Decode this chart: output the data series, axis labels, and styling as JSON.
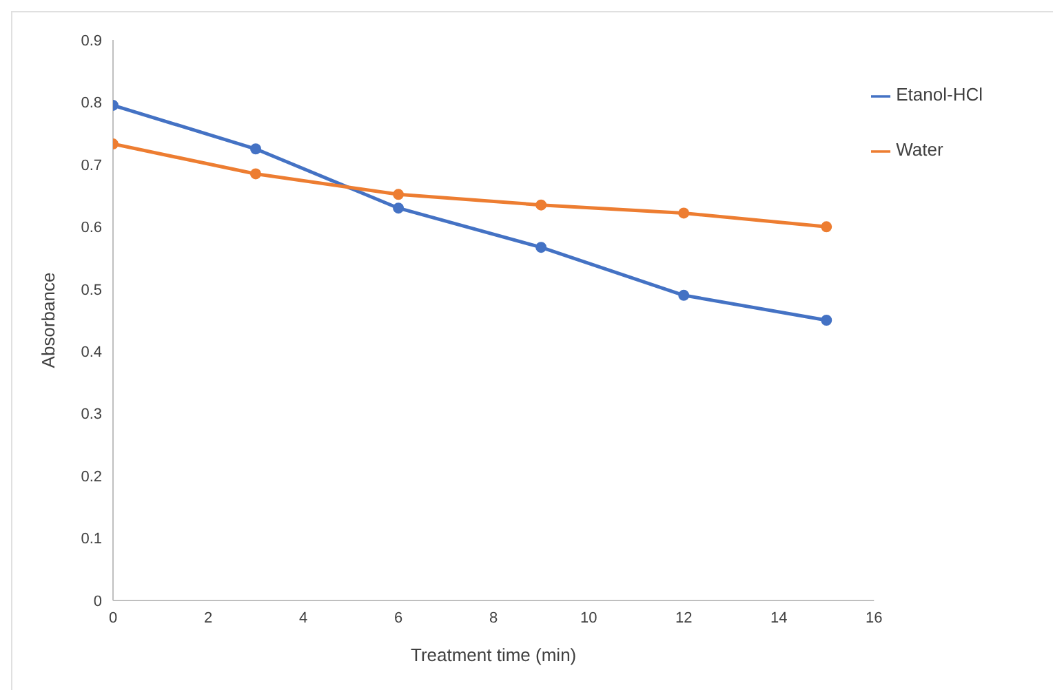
{
  "chart_data": {
    "type": "line",
    "xlabel": "Treatment time (min)",
    "ylabel": "Absorbance",
    "x": [
      0,
      3,
      6,
      9,
      12,
      15
    ],
    "series": [
      {
        "name": "Etanol-HCl",
        "color": "#4472c4",
        "values": [
          0.795,
          0.725,
          0.63,
          0.567,
          0.49,
          0.45
        ]
      },
      {
        "name": "Water",
        "color": "#ed7d31",
        "values": [
          0.733,
          0.685,
          0.652,
          0.635,
          0.622,
          0.6
        ]
      }
    ],
    "xlim": [
      0,
      16
    ],
    "xticks": [
      0,
      2,
      4,
      6,
      8,
      10,
      12,
      14,
      16
    ],
    "ylim": [
      0,
      0.9
    ],
    "yticks": [
      0,
      0.1,
      0.2,
      0.3,
      0.4,
      0.5,
      0.6,
      0.7,
      0.8,
      0.9
    ],
    "grid": false,
    "legend": "top right",
    "marker": "circle",
    "line_style": "solid"
  }
}
